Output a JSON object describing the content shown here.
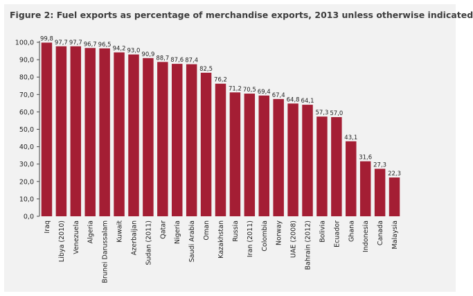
{
  "colors": {
    "bar": "#a41e34",
    "background": "#f2f2f2",
    "axis": "#444444"
  },
  "chart_data": {
    "type": "bar",
    "title": "Figure 2: Fuel exports as percentage of merchandise exports, 2013 unless otherwise indicated",
    "xlabel": "",
    "ylabel": "",
    "ylim": [
      0,
      100
    ],
    "y_ticks": [
      "0,0",
      "10,0",
      "20,0",
      "30,0",
      "40,0",
      "50,0",
      "60,0",
      "70,0",
      "80,0",
      "90,0",
      "100,0"
    ],
    "grid": false,
    "legend": "none",
    "categories": [
      "Iraq",
      "Libya (2010)",
      "Venezuela",
      "Algeria",
      "Brunei Darussalam",
      "Kuwait",
      "Azerbaijan",
      "Sudan (2011)",
      "Qatar",
      "Nigeria",
      "Saudi Arabia",
      "Oman",
      "Kazakhstan",
      "Russia",
      "Iran (2011)",
      "Colombia",
      "Norway",
      "UAE (2008)",
      "Bahrain (2012)",
      "Bolivia",
      "Ecuador",
      "Ghana",
      "Indonesia",
      "Canada",
      "Malaysia"
    ],
    "values": [
      99.8,
      97.7,
      97.7,
      96.7,
      96.5,
      94.2,
      93.0,
      90.9,
      88.7,
      87.6,
      87.4,
      82.5,
      76.2,
      71.2,
      70.5,
      69.4,
      67.4,
      64.8,
      64.1,
      57.3,
      57.0,
      43.1,
      31.6,
      27.3,
      22.3
    ],
    "value_labels": [
      "99,8",
      "97,7",
      "97,7",
      "96,7",
      "96,5",
      "94,2",
      "93,0",
      "90,9",
      "88,7",
      "87,6",
      "87,4",
      "82,5",
      "76,2",
      "71,2",
      "70,5",
      "69,4",
      "67,4",
      "64,8",
      "64,1",
      "57,3",
      "57,0",
      "43,1",
      "31,6",
      "27,3",
      "22,3"
    ]
  }
}
